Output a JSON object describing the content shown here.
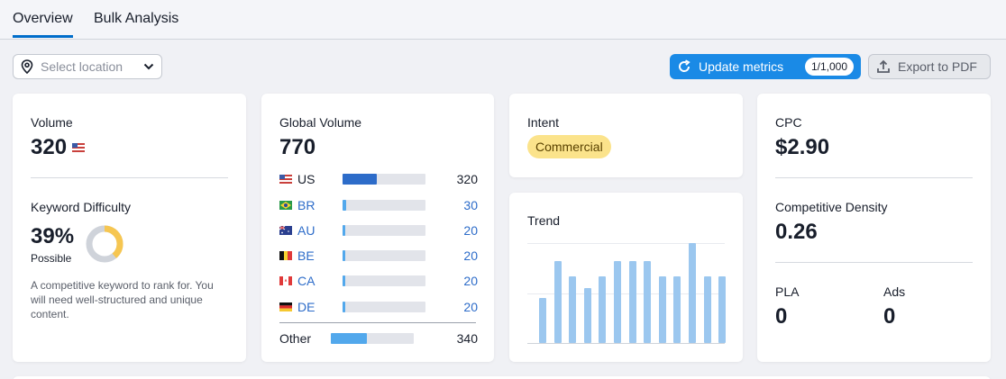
{
  "tabs": [
    {
      "label": "Overview"
    },
    {
      "label": "Bulk Analysis"
    }
  ],
  "location": {
    "placeholder": "Select location"
  },
  "toolbar": {
    "update_label": "Update metrics",
    "update_count": "1/1,000",
    "export_label": "Export to PDF"
  },
  "volume": {
    "label": "Volume",
    "value": "320"
  },
  "kd": {
    "label": "Keyword Difficulty",
    "value": "39%",
    "level": "Possible",
    "percent": 39,
    "description": "A competitive keyword to rank for. You will need well-structured and unique content."
  },
  "global": {
    "label": "Global Volume",
    "value": "770",
    "rows": [
      {
        "code": "US",
        "value": "320",
        "fraction": 0.41
      },
      {
        "code": "BR",
        "value": "30",
        "fraction": 0.04
      },
      {
        "code": "AU",
        "value": "20",
        "fraction": 0.025
      },
      {
        "code": "BE",
        "value": "20",
        "fraction": 0.025
      },
      {
        "code": "CA",
        "value": "20",
        "fraction": 0.025
      },
      {
        "code": "DE",
        "value": "20",
        "fraction": 0.025
      }
    ],
    "other": {
      "label": "Other",
      "value": "340",
      "fraction": 0.44
    }
  },
  "intent": {
    "label": "Intent",
    "badge": "Commercial"
  },
  "trend": {
    "label": "Trend",
    "values": [
      0.45,
      0.82,
      0.67,
      0.55,
      0.67,
      0.82,
      0.82,
      0.82,
      0.67,
      0.67,
      1.0,
      0.67,
      0.67
    ]
  },
  "cpc": {
    "label": "CPC",
    "value": "$2.90"
  },
  "density": {
    "label": "Competitive Density",
    "value": "0.26"
  },
  "pla": {
    "label": "PLA",
    "value": "0"
  },
  "ads": {
    "label": "Ads",
    "value": "0"
  },
  "colors": {
    "accent": "#1a8ae6",
    "bar_us": "#2d6cc9",
    "bar_other": "#52a8ec",
    "bar_small": "#52a8ec",
    "trend": "#9bc7ef",
    "badge_bg": "#fbe38b",
    "link": "#2d6cc9",
    "gauge": "#f6c651",
    "gauge_bg": "#cfd3da"
  }
}
